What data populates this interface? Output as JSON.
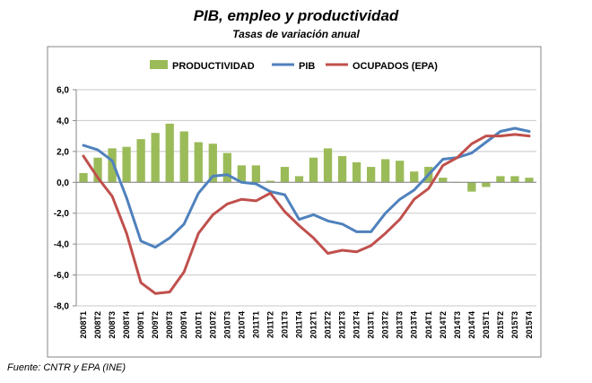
{
  "title": "PIB, empleo y productividad",
  "subtitle": "Tasas de variación anual",
  "source": "Fuente: CNTR y EPA (INE)",
  "colors": {
    "productividad": "#9bbb59",
    "pib": "#4f81bd",
    "ocupados": "#c0504d",
    "grid": "#c8c8c8",
    "frame": "#868686"
  },
  "chart_data": {
    "type": "bar",
    "categories": [
      "2008T1",
      "2008T2",
      "2008T3",
      "2008T4",
      "2009T1",
      "2009T2",
      "2009T3",
      "2009T4",
      "2010T1",
      "2010T2",
      "2010T3",
      "2010T4",
      "2011T1",
      "2011T2",
      "2011T3",
      "2011T4",
      "2012T1",
      "2012T2",
      "2012T3",
      "2012T4",
      "2013T1",
      "2013T2",
      "2013T3",
      "2013T4",
      "2014T1",
      "2014T2",
      "2014T3",
      "2014T4",
      "2015T1",
      "2015T2",
      "2015T3",
      "2015T4"
    ],
    "series": [
      {
        "name": "PRODUCTIVIDAD",
        "type": "bar",
        "values": [
          0.6,
          1.6,
          2.2,
          2.3,
          2.8,
          3.2,
          3.8,
          3.3,
          2.6,
          2.5,
          1.9,
          1.1,
          1.1,
          0.1,
          1.0,
          0.4,
          1.6,
          2.2,
          1.7,
          1.3,
          1.0,
          1.5,
          1.4,
          0.7,
          1.0,
          0.3,
          0.0,
          -0.6,
          -0.3,
          0.4,
          0.4,
          0.3
        ]
      },
      {
        "name": "PIB",
        "type": "line",
        "values": [
          2.4,
          2.1,
          1.4,
          -1.0,
          -3.8,
          -4.2,
          -3.6,
          -2.7,
          -0.7,
          0.4,
          0.5,
          0.0,
          -0.1,
          -0.6,
          -0.8,
          -2.4,
          -2.1,
          -2.5,
          -2.7,
          -3.2,
          -3.2,
          -2.0,
          -1.1,
          -0.5,
          0.5,
          1.5,
          1.6,
          1.9,
          2.6,
          3.3,
          3.5,
          3.3
        ]
      },
      {
        "name": "OCUPADOS (EPA)",
        "type": "line",
        "values": [
          1.7,
          0.3,
          -0.9,
          -3.3,
          -6.5,
          -7.2,
          -7.1,
          -5.8,
          -3.3,
          -2.1,
          -1.4,
          -1.1,
          -1.2,
          -0.7,
          -1.9,
          -2.8,
          -3.6,
          -4.6,
          -4.4,
          -4.5,
          -4.1,
          -3.3,
          -2.4,
          -1.1,
          -0.4,
          1.1,
          1.6,
          2.5,
          3.0,
          3.0,
          3.1,
          3.0
        ]
      }
    ],
    "ylim": [
      -8,
      6
    ],
    "yticks": [
      "6,0",
      "4,0",
      "2,0",
      "0,0",
      "-2,0",
      "-4,0",
      "-6,0",
      "-8,0"
    ],
    "ytick_values": [
      6,
      4,
      2,
      0,
      -2,
      -4,
      -6,
      -8
    ],
    "grid": true,
    "legend": "top"
  }
}
